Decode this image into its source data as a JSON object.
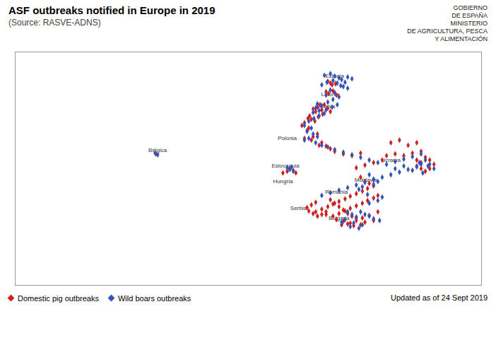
{
  "chart_data": {
    "type": "scatter",
    "title": "ASF outbreaks notified in Europe in 2019",
    "subtitle": "(Source: RASVE-ADNS)",
    "xlim": [
      -12,
      42
    ],
    "ylim": [
      35,
      62
    ],
    "tick_labels": false,
    "grid": false,
    "annotations": [
      {
        "text": "Estonia\nn",
        "x": 25.0,
        "y": 58.9
      },
      {
        "text": "Letonia",
        "x": 24.5,
        "y": 57.1
      },
      {
        "text": "Lituania",
        "x": 23.9,
        "y": 55.7
      },
      {
        "text": "Polonia",
        "x": 19.5,
        "y": 52.0
      },
      {
        "text": "Ucrania",
        "x": 31.5,
        "y": 49.5
      },
      {
        "text": "Moldavia",
        "x": 28.6,
        "y": 47.2
      },
      {
        "text": "Rumania",
        "x": 25.2,
        "y": 45.8
      },
      {
        "text": "Bulgaria",
        "x": 25.5,
        "y": 42.8
      },
      {
        "text": "Serbia",
        "x": 20.8,
        "y": 43.9
      },
      {
        "text": "Hungria",
        "x": 19.0,
        "y": 47.0
      },
      {
        "text": "Eslovaquia",
        "x": 19.3,
        "y": 48.8
      },
      {
        "text": "Bélgica",
        "x": 4.5,
        "y": 50.6
      },
      {
        "text": "GOBIERNO"
      },
      {
        "text": "DE ESPAÑA"
      },
      {
        "text": "MINISTERIO"
      },
      {
        "text": "DE AGRICULTURA, PESCA"
      },
      {
        "text": "Y ALIMENTACIÓN"
      },
      {
        "text": "Updated as of 24 Sept 2019"
      }
    ],
    "series": [
      {
        "name": "Domestic pig outbreaks",
        "color": "#cc2222",
        "marker": "diamond",
        "values": [
          [
            24.5,
            58.4
          ],
          [
            24.7,
            58.2
          ],
          [
            24.2,
            58.6
          ],
          [
            25.1,
            58.3
          ],
          [
            24.8,
            57.5
          ],
          [
            24.3,
            57.2
          ],
          [
            25.2,
            57.0
          ],
          [
            24.0,
            57.4
          ],
          [
            23.8,
            55.9
          ],
          [
            24.2,
            55.5
          ],
          [
            23.5,
            55.3
          ],
          [
            24.5,
            55.1
          ],
          [
            23.0,
            55.6
          ],
          [
            23.3,
            55.9
          ],
          [
            22.5,
            55.4
          ],
          [
            22.8,
            55.1
          ],
          [
            23.6,
            54.8
          ],
          [
            23.1,
            54.5
          ],
          [
            22.3,
            54.2
          ],
          [
            22.7,
            54.0
          ],
          [
            21.9,
            54.3
          ],
          [
            22.1,
            54.6
          ],
          [
            21.5,
            53.8
          ],
          [
            21.2,
            53.5
          ],
          [
            22.0,
            53.2
          ],
          [
            21.8,
            52.9
          ],
          [
            23.0,
            52.5
          ],
          [
            22.5,
            52.2
          ],
          [
            21.5,
            52.0
          ],
          [
            22.3,
            51.8
          ],
          [
            23.5,
            51.5
          ],
          [
            23.2,
            51.2
          ],
          [
            24.0,
            51.1
          ],
          [
            24.5,
            50.8
          ],
          [
            25.0,
            50.5
          ],
          [
            26.0,
            50.2
          ],
          [
            27.0,
            50.0
          ],
          [
            28.0,
            50.3
          ],
          [
            28.5,
            48.9
          ],
          [
            27.5,
            48.6
          ],
          [
            28.0,
            47.5
          ],
          [
            28.5,
            47.0
          ],
          [
            29.0,
            46.8
          ],
          [
            29.5,
            46.5
          ],
          [
            28.8,
            46.2
          ],
          [
            28.2,
            45.9
          ],
          [
            27.5,
            45.6
          ],
          [
            26.8,
            45.3
          ],
          [
            26.2,
            45.0
          ],
          [
            25.5,
            44.7
          ],
          [
            24.8,
            44.4
          ],
          [
            24.2,
            44.1
          ],
          [
            23.5,
            43.8
          ],
          [
            22.8,
            43.5
          ],
          [
            24.0,
            43.2
          ],
          [
            24.8,
            43.0
          ],
          [
            25.5,
            43.3
          ],
          [
            26.2,
            43.6
          ],
          [
            26.8,
            43.9
          ],
          [
            27.5,
            44.2
          ],
          [
            28.2,
            44.5
          ],
          [
            28.8,
            44.8
          ],
          [
            29.5,
            45.1
          ],
          [
            30.0,
            45.4
          ],
          [
            24.5,
            44.9
          ],
          [
            25.0,
            44.5
          ],
          [
            25.5,
            44.1
          ],
          [
            26.0,
            43.7
          ],
          [
            26.5,
            43.3
          ],
          [
            27.0,
            43.0
          ],
          [
            27.5,
            42.8
          ],
          [
            25.2,
            42.6
          ],
          [
            26.0,
            42.4
          ],
          [
            26.8,
            42.2
          ],
          [
            27.5,
            42.5
          ],
          [
            28.2,
            42.8
          ],
          [
            29.0,
            43.1
          ],
          [
            30.0,
            43.5
          ],
          [
            29.5,
            42.5
          ],
          [
            28.5,
            42.3
          ],
          [
            25.8,
            42.0
          ],
          [
            26.5,
            42.1
          ],
          [
            27.2,
            41.9
          ],
          [
            28.0,
            42.0
          ],
          [
            24.0,
            43.5
          ],
          [
            23.5,
            43.2
          ],
          [
            23.0,
            43.0
          ],
          [
            22.5,
            43.3
          ],
          [
            22.0,
            43.6
          ],
          [
            21.8,
            44.0
          ],
          [
            22.3,
            44.3
          ],
          [
            22.8,
            44.6
          ],
          [
            19.8,
            48.5
          ],
          [
            20.2,
            48.3
          ],
          [
            19.5,
            48.2
          ],
          [
            20.5,
            48.0
          ],
          [
            19.0,
            48.0
          ],
          [
            4.3,
            50.2
          ],
          [
            31.5,
            51.5
          ],
          [
            32.5,
            51.8
          ],
          [
            33.5,
            51.2
          ],
          [
            34.5,
            51.5
          ],
          [
            33.0,
            50.0
          ],
          [
            34.0,
            50.3
          ],
          [
            35.0,
            50.5
          ],
          [
            35.5,
            49.8
          ],
          [
            34.5,
            49.5
          ],
          [
            35.0,
            49.2
          ],
          [
            36.0,
            49.5
          ],
          [
            36.5,
            49.0
          ],
          [
            36.0,
            48.5
          ],
          [
            35.5,
            48.2
          ],
          [
            35.0,
            48.5
          ],
          [
            34.5,
            48.8
          ],
          [
            29.5,
            49.2
          ],
          [
            30.5,
            49.5
          ],
          [
            31.0,
            50.0
          ],
          [
            32.0,
            50.2
          ]
        ]
      },
      {
        "name": "Wild boars outbreaks",
        "color": "#3355bb",
        "marker": "diamond",
        "values": [
          [
            25.5,
            59.0
          ],
          [
            25.8,
            58.8
          ],
          [
            26.2,
            58.5
          ],
          [
            25.0,
            59.2
          ],
          [
            24.5,
            59.5
          ],
          [
            23.8,
            59.3
          ],
          [
            26.5,
            59.1
          ],
          [
            27.0,
            58.9
          ],
          [
            24.8,
            58.7
          ],
          [
            25.3,
            58.4
          ],
          [
            25.7,
            58.1
          ],
          [
            24.1,
            58.5
          ],
          [
            23.5,
            58.2
          ],
          [
            26.0,
            58.0
          ],
          [
            26.5,
            57.8
          ],
          [
            24.5,
            57.6
          ],
          [
            25.0,
            57.3
          ],
          [
            24.0,
            57.0
          ],
          [
            25.5,
            56.8
          ],
          [
            24.8,
            56.5
          ],
          [
            24.2,
            56.2
          ],
          [
            25.3,
            55.9
          ],
          [
            24.7,
            55.6
          ],
          [
            24.0,
            55.3
          ],
          [
            23.5,
            55.8
          ],
          [
            23.0,
            56.0
          ],
          [
            22.8,
            55.5
          ],
          [
            23.2,
            55.2
          ],
          [
            22.5,
            55.0
          ],
          [
            23.8,
            54.9
          ],
          [
            23.2,
            54.6
          ],
          [
            22.6,
            54.3
          ],
          [
            22.0,
            54.0
          ],
          [
            21.5,
            53.5
          ],
          [
            22.3,
            53.2
          ],
          [
            21.8,
            52.8
          ],
          [
            22.5,
            52.5
          ],
          [
            23.0,
            52.2
          ],
          [
            22.0,
            52.0
          ],
          [
            21.5,
            51.8
          ],
          [
            22.8,
            51.5
          ],
          [
            23.5,
            51.2
          ],
          [
            24.2,
            51.0
          ],
          [
            25.0,
            50.7
          ],
          [
            26.0,
            50.4
          ],
          [
            27.0,
            50.1
          ],
          [
            28.0,
            49.8
          ],
          [
            29.0,
            49.5
          ],
          [
            30.0,
            49.2
          ],
          [
            31.0,
            49.0
          ],
          [
            32.0,
            49.3
          ],
          [
            33.0,
            49.6
          ],
          [
            34.0,
            49.9
          ],
          [
            35.0,
            50.2
          ],
          [
            35.5,
            49.5
          ],
          [
            35.0,
            49.0
          ],
          [
            34.5,
            48.7
          ],
          [
            33.5,
            48.4
          ],
          [
            32.5,
            48.1
          ],
          [
            31.5,
            47.8
          ],
          [
            30.5,
            47.5
          ],
          [
            29.5,
            47.2
          ],
          [
            28.5,
            46.9
          ],
          [
            27.5,
            46.6
          ],
          [
            26.5,
            46.3
          ],
          [
            25.5,
            46.0
          ],
          [
            24.5,
            45.7
          ],
          [
            23.5,
            45.4
          ],
          [
            19.5,
            48.6
          ],
          [
            19.8,
            48.4
          ],
          [
            20.2,
            48.2
          ],
          [
            20.0,
            48.7
          ],
          [
            29.0,
            47.8
          ],
          [
            29.5,
            47.3
          ],
          [
            30.0,
            47.0
          ],
          [
            29.5,
            46.7
          ],
          [
            28.2,
            46.4
          ],
          [
            27.8,
            46.1
          ],
          [
            26.5,
            43.5
          ],
          [
            27.0,
            43.2
          ],
          [
            27.5,
            42.9
          ],
          [
            26.2,
            42.6
          ],
          [
            25.8,
            42.3
          ],
          [
            28.0,
            43.5
          ],
          [
            28.5,
            43.2
          ],
          [
            29.0,
            43.0
          ],
          [
            29.5,
            42.7
          ],
          [
            30.2,
            42.5
          ],
          [
            27.2,
            42.2
          ],
          [
            28.2,
            42.0
          ],
          [
            26.8,
            41.8
          ],
          [
            27.8,
            41.6
          ],
          [
            29.0,
            44.5
          ],
          [
            30.0,
            44.8
          ],
          [
            30.5,
            45.2
          ],
          [
            28.8,
            45.5
          ],
          [
            4.2,
            50.3
          ],
          [
            4.5,
            50.1
          ],
          [
            32.0,
            48.5
          ],
          [
            33.0,
            48.8
          ],
          [
            34.0,
            48.3
          ],
          [
            35.2,
            48.0
          ],
          [
            36.0,
            49.0
          ],
          [
            36.5,
            48.5
          ],
          [
            35.8,
            48.8
          ],
          [
            34.8,
            49.2
          ]
        ]
      }
    ]
  }
}
